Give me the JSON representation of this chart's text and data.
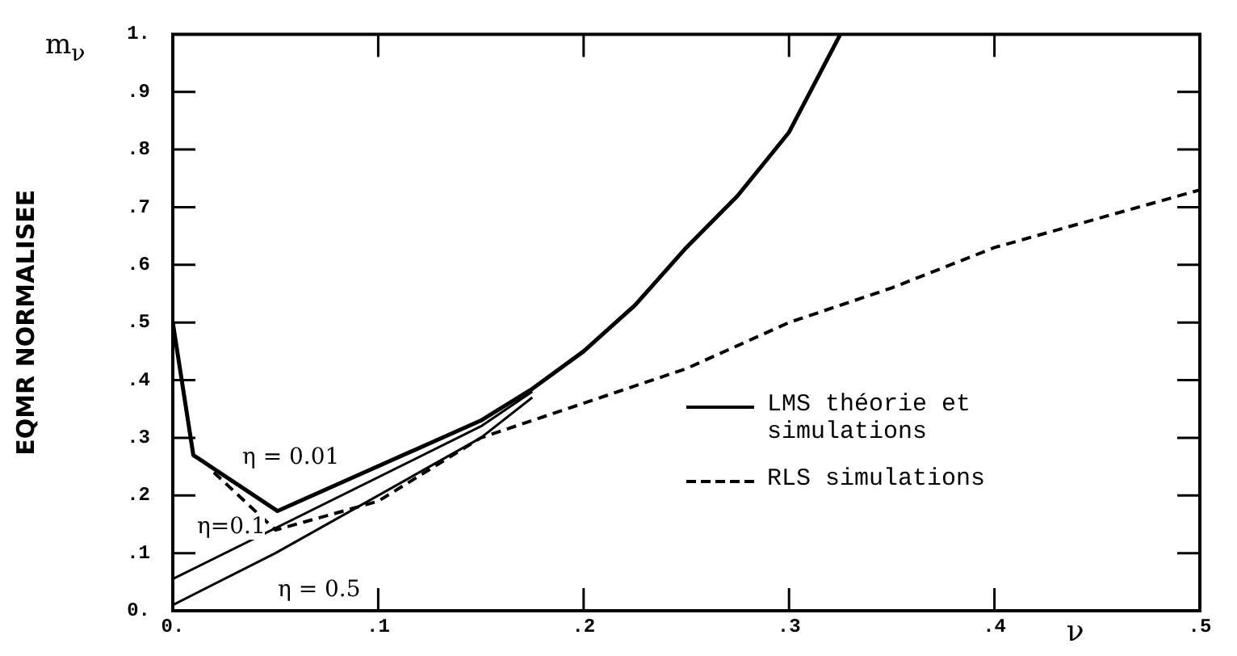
{
  "chart_data": {
    "type": "line",
    "xlabel": "ν",
    "ylabel": "EQMR NORMALISEE",
    "xlim": [
      0,
      0.5
    ],
    "ylim": [
      0,
      1
    ],
    "xticks": [
      {
        "value": 0,
        "label": "0."
      },
      {
        "value": 0.1,
        "label": ".1"
      },
      {
        "value": 0.2,
        "label": ".2"
      },
      {
        "value": 0.3,
        "label": ".3"
      },
      {
        "value": 0.4,
        "label": ".4"
      },
      {
        "value": 0.5,
        "label": ".5"
      }
    ],
    "yticks": [
      {
        "value": 0,
        "label": "0."
      },
      {
        "value": 0.1,
        "label": ".1"
      },
      {
        "value": 0.2,
        "label": ".2"
      },
      {
        "value": 0.3,
        "label": ".3"
      },
      {
        "value": 0.4,
        "label": ".4"
      },
      {
        "value": 0.5,
        "label": ".5"
      },
      {
        "value": 0.6,
        "label": ".6"
      },
      {
        "value": 0.7,
        "label": ".7"
      },
      {
        "value": 0.8,
        "label": ".8"
      },
      {
        "value": 0.9,
        "label": ".9"
      },
      {
        "value": 1,
        "label": "1."
      }
    ],
    "marker": "none",
    "legend": "right",
    "series": [
      {
        "name": "LMS théorie et simulations",
        "color": "#000000",
        "line_style": "solid",
        "x": [
          0,
          0.01,
          0.051,
          0.15,
          0.175,
          0.2,
          0.225,
          0.25,
          0.275,
          0.3,
          0.325
        ],
        "values": [
          0.5,
          0.27,
          0.173,
          0.33,
          0.385,
          0.45,
          0.53,
          0.63,
          0.72,
          0.83,
          1.0
        ]
      },
      {
        "color": "#000000",
        "line_style": "solid",
        "x": [
          0,
          0.15,
          0.175
        ],
        "values": [
          0.055,
          0.32,
          0.38
        ]
      },
      {
        "color": "#000000",
        "line_style": "solid",
        "x": [
          0,
          0.05,
          0.15,
          0.175
        ],
        "values": [
          0.01,
          0.1,
          0.3,
          0.37
        ]
      },
      {
        "name": "RLS simulations",
        "color": "#000000",
        "line_style": "dashed",
        "x": [
          0.02,
          0.05,
          0.1,
          0.15,
          0.2,
          0.25,
          0.3,
          0.35,
          0.4,
          0.45,
          0.5
        ],
        "values": [
          0.24,
          0.14,
          0.19,
          0.3,
          0.36,
          0.42,
          0.5,
          0.56,
          0.63,
          0.68,
          0.73
        ]
      }
    ],
    "annotations": [
      "η = 0.01",
      "η=0.1",
      "η = 0.5",
      "m$_{ν}$"
    ]
  }
}
